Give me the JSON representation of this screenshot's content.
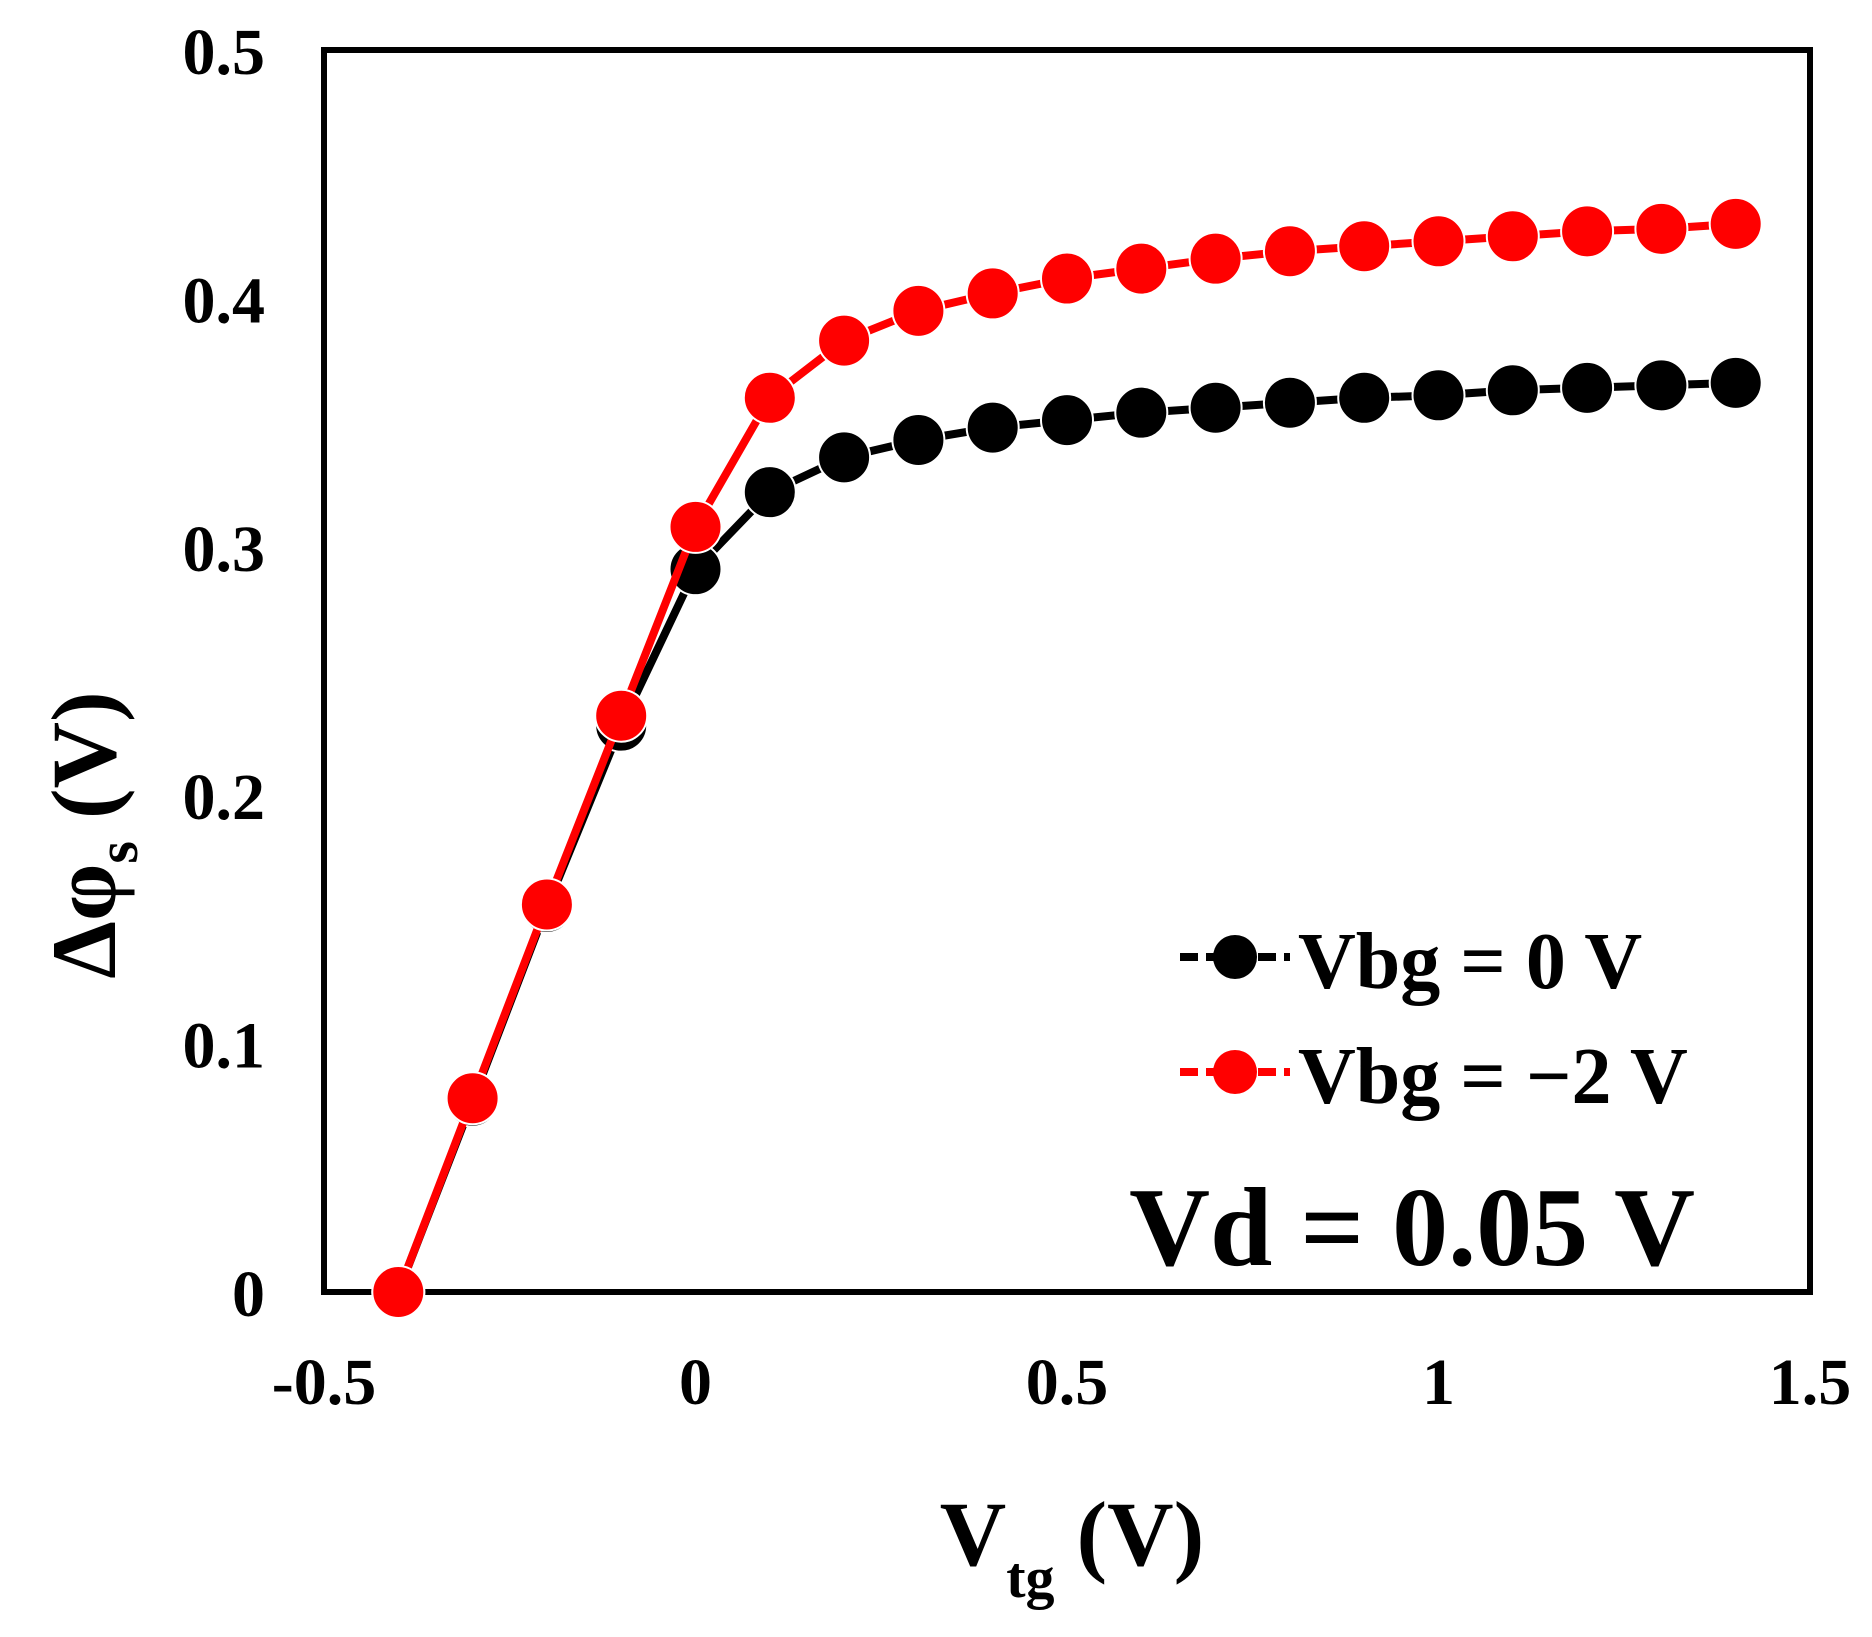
{
  "chart_data": {
    "type": "line",
    "title": "",
    "xlabel": {
      "main": "V",
      "sub": "tg",
      "unit": "(V)"
    },
    "ylabel": {
      "main": "Δφ",
      "sub": "s",
      "unit": "(V)"
    },
    "xlim": [
      -0.5,
      1.5
    ],
    "ylim": [
      0,
      0.5
    ],
    "x_ticks": [
      -0.5,
      0,
      0.5,
      1,
      1.5
    ],
    "x_tick_labels": [
      "-0.5",
      "0",
      "0.5",
      "1",
      "1.5"
    ],
    "y_ticks": [
      0,
      0.1,
      0.2,
      0.3,
      0.4,
      0.5
    ],
    "y_tick_labels": [
      "0",
      "0.1",
      "0.2",
      "0.3",
      "0.4",
      "0.5"
    ],
    "grid": false,
    "legend_position": "center-right",
    "annotation": "Vd = 0.05 V",
    "series": [
      {
        "name": "Vbg = 0 V",
        "color": "#000000",
        "x": [
          -0.4,
          -0.3,
          -0.2,
          -0.1,
          0,
          0.1,
          0.2,
          0.3,
          0.4,
          0.5,
          0.6,
          0.7,
          0.8,
          0.9,
          1.0,
          1.1,
          1.2,
          1.3,
          1.4
        ],
        "y": [
          0.0,
          0.077,
          0.155,
          0.228,
          0.291,
          0.322,
          0.336,
          0.343,
          0.348,
          0.351,
          0.354,
          0.356,
          0.358,
          0.36,
          0.361,
          0.363,
          0.364,
          0.365,
          0.366
        ]
      },
      {
        "name": "Vbg = −2 V",
        "color": "#ff0000",
        "x": [
          -0.4,
          -0.3,
          -0.2,
          -0.1,
          0,
          0.1,
          0.2,
          0.3,
          0.4,
          0.5,
          0.6,
          0.7,
          0.8,
          0.9,
          1.0,
          1.1,
          1.2,
          1.3,
          1.4
        ],
        "y": [
          0.0,
          0.078,
          0.156,
          0.232,
          0.308,
          0.36,
          0.383,
          0.395,
          0.402,
          0.408,
          0.412,
          0.416,
          0.419,
          0.421,
          0.423,
          0.425,
          0.427,
          0.428,
          0.43
        ]
      }
    ]
  }
}
